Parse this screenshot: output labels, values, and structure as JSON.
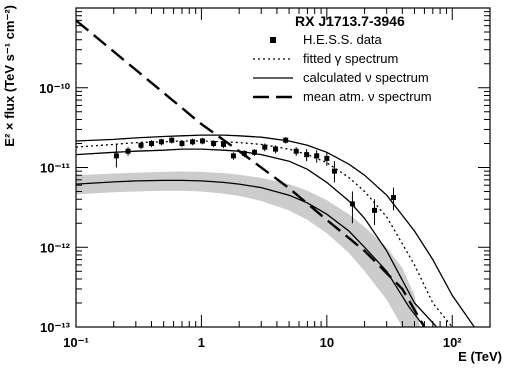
{
  "chart_data": {
    "type": "line",
    "title": "RX J1713.7-3946",
    "xlabel": "E (TeV)",
    "ylabel": "E² × flux (TeV s⁻¹ cm⁻²)",
    "x_scale": "log",
    "y_scale": "log",
    "xlim": [
      0.1,
      200
    ],
    "ylim": [
      1e-13,
      1e-09
    ],
    "grid": false,
    "legend_position": "top-right",
    "x_ticks": [
      {
        "value": 0.1,
        "label": "10⁻¹"
      },
      {
        "value": 1,
        "label": "1"
      },
      {
        "value": 10,
        "label": "10"
      },
      {
        "value": 100,
        "label": "10²"
      }
    ],
    "y_ticks": [
      {
        "value": 1e-13,
        "label": "10⁻¹³"
      },
      {
        "value": 1e-12,
        "label": "10⁻¹²"
      },
      {
        "value": 1e-11,
        "label": "10⁻¹¹"
      },
      {
        "value": 1e-10,
        "label": "10⁻¹⁰"
      }
    ],
    "legend": [
      {
        "label": "H.E.S.S. data",
        "style": "marker"
      },
      {
        "label": "fitted γ spectrum",
        "style": "dotted"
      },
      {
        "label": "calculated ν spectrum",
        "style": "solid"
      },
      {
        "label": "mean atm. ν spectrum",
        "style": "dashed"
      }
    ],
    "series": [
      {
        "name": "H.E.S.S. data",
        "kind": "points",
        "color": "#000000",
        "x": [
          0.21,
          0.26,
          0.33,
          0.4,
          0.48,
          0.58,
          0.7,
          0.85,
          1.02,
          1.25,
          1.5,
          1.8,
          2.2,
          2.65,
          3.2,
          3.9,
          4.7,
          5.7,
          6.9,
          8.3,
          10.0,
          11.5,
          16.0,
          24.0,
          34.0
        ],
        "y": [
          1.4e-11,
          1.6e-11,
          1.9e-11,
          2e-11,
          2.1e-11,
          2.2e-11,
          2e-11,
          2.1e-11,
          2.15e-11,
          2e-11,
          1.95e-11,
          1.4e-11,
          1.5e-11,
          1.55e-11,
          1.8e-11,
          1.7e-11,
          2.2e-11,
          1.6e-11,
          1.45e-11,
          1.4e-11,
          1.3e-11,
          9e-12,
          3.5e-12,
          2.9e-12,
          4.2e-12
        ],
        "yerr_low": [
          1e-11,
          1.4e-11,
          1.7e-11,
          1.8e-11,
          1.9e-11,
          2e-11,
          1.8e-11,
          1.9e-11,
          1.95e-11,
          1.8e-11,
          1.75e-11,
          1.25e-11,
          1.35e-11,
          1.4e-11,
          1.6e-11,
          1.5e-11,
          2e-11,
          1.4e-11,
          1.2e-11,
          1.15e-11,
          1.05e-11,
          6.5e-12,
          2e-12,
          1.9e-12,
          2.9e-12
        ],
        "yerr_high": [
          2e-11,
          1.8e-11,
          2.1e-11,
          2.2e-11,
          2.3e-11,
          2.4e-11,
          2.2e-11,
          2.3e-11,
          2.35e-11,
          2.2e-11,
          2.15e-11,
          1.55e-11,
          1.65e-11,
          1.7e-11,
          2e-11,
          1.9e-11,
          2.4e-11,
          1.8e-11,
          1.7e-11,
          1.65e-11,
          1.55e-11,
          1.2e-11,
          5e-12,
          4e-12,
          5.6e-12
        ]
      },
      {
        "name": "fitted γ spectrum",
        "kind": "line",
        "dash": "dotted",
        "color": "#000000",
        "x": [
          0.1,
          0.2,
          0.3,
          0.5,
          0.7,
          1,
          1.5,
          2,
          3,
          5,
          7,
          10,
          15,
          20,
          30,
          50,
          70,
          100
        ],
        "y": [
          1.8e-11,
          1.95e-11,
          2.05e-11,
          2.1e-11,
          2.15e-11,
          2.15e-11,
          2.1e-11,
          2.05e-11,
          1.95e-11,
          1.7e-11,
          1.45e-11,
          1.15e-11,
          7.5e-12,
          5e-12,
          2.4e-12,
          6e-13,
          2e-13,
          1e-13
        ]
      },
      {
        "name": "calculated ν spectrum (upper)",
        "kind": "line",
        "dash": "solid",
        "color": "#000000",
        "x": [
          0.1,
          0.2,
          0.3,
          0.5,
          0.7,
          1,
          1.5,
          2,
          3,
          5,
          7,
          10,
          15,
          20,
          30,
          50,
          70,
          100,
          150
        ],
        "y": [
          2.15e-11,
          2.25e-11,
          2.35e-11,
          2.45e-11,
          2.5e-11,
          2.55e-11,
          2.55e-11,
          2.5e-11,
          2.4e-11,
          2.15e-11,
          1.9e-11,
          1.55e-11,
          1.1e-11,
          8e-12,
          4.5e-12,
          1.6e-12,
          7e-13,
          2.5e-13,
          1e-13
        ]
      },
      {
        "name": "calculated ν spectrum (lower)",
        "kind": "line",
        "dash": "solid",
        "color": "#000000",
        "x": [
          0.1,
          0.2,
          0.3,
          0.5,
          0.7,
          1,
          1.5,
          2,
          3,
          5,
          7,
          10,
          15,
          20,
          30,
          50,
          75
        ],
        "y": [
          1.45e-11,
          1.55e-11,
          1.6e-11,
          1.65e-11,
          1.7e-11,
          1.7e-11,
          1.65e-11,
          1.6e-11,
          1.45e-11,
          1.2e-11,
          9.5e-12,
          6.5e-12,
          3.8e-12,
          2.3e-12,
          9e-13,
          2e-13,
          1e-13
        ]
      },
      {
        "name": "calculated ν spectrum (band centre)",
        "kind": "line",
        "dash": "solid",
        "color": "#000000",
        "x": [
          0.1,
          0.2,
          0.3,
          0.5,
          0.7,
          1,
          1.5,
          2,
          3,
          5,
          7,
          10,
          15,
          20,
          30,
          45,
          60
        ],
        "y": [
          6.2e-12,
          6.6e-12,
          6.8e-12,
          6.9e-12,
          6.9e-12,
          6.8e-12,
          6.5e-12,
          6.2e-12,
          5.6e-12,
          4.5e-12,
          3.6e-12,
          2.6e-12,
          1.6e-12,
          1e-12,
          5e-13,
          1.8e-13,
          1e-13
        ]
      },
      {
        "name": "mean atm. ν spectrum",
        "kind": "line",
        "dash": "dashed",
        "color": "#000000",
        "x": [
          0.1,
          1,
          2,
          5,
          10,
          20,
          40,
          60
        ],
        "y": [
          7e-10,
          3.5e-11,
          1.6e-11,
          5.5e-12,
          2.2e-12,
          9e-13,
          3e-13,
          1e-13
        ]
      }
    ],
    "bands": [
      {
        "name": "calculated ν spectrum uncertainty",
        "color": "#cccccc",
        "x": [
          0.1,
          0.2,
          0.3,
          0.5,
          0.7,
          1,
          1.5,
          2,
          3,
          5,
          7,
          10,
          15,
          20,
          30,
          40,
          50,
          55
        ],
        "y_low": [
          4.6e-12,
          4.9e-12,
          5e-12,
          5.1e-12,
          5.1e-12,
          5e-12,
          4.7e-12,
          4.4e-12,
          3.8e-12,
          2.9e-12,
          2.2e-12,
          1.5e-12,
          8.5e-13,
          5e-13,
          2.2e-13,
          1e-13,
          1e-13,
          1e-13
        ],
        "y_high": [
          8e-12,
          8.4e-12,
          8.6e-12,
          8.8e-12,
          8.9e-12,
          8.8e-12,
          8.5e-12,
          8.1e-12,
          7.4e-12,
          6.2e-12,
          5.1e-12,
          3.9e-12,
          2.6e-12,
          1.8e-12,
          1e-12,
          5.5e-13,
          2.5e-13,
          1e-13
        ]
      }
    ]
  }
}
